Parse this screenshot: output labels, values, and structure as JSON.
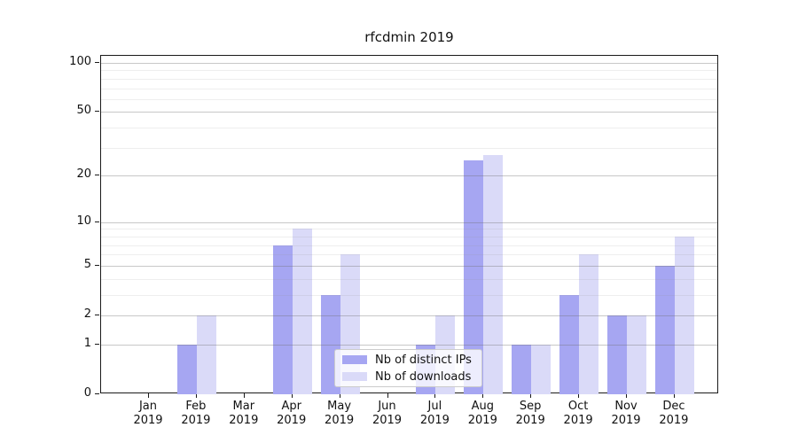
{
  "title": "rfcdmin 2019",
  "colors": {
    "distinct_ips": "#a6a6f2",
    "downloads": "#dadaf8",
    "grid_major": "#c6c6c6",
    "grid_minor": "#ebebeb",
    "spine": "#1a1a1a"
  },
  "chart_data": {
    "type": "bar",
    "title": "rfcdmin 2019",
    "categories": [
      "Jan 2019",
      "Feb 2019",
      "Mar 2019",
      "Apr 2019",
      "May 2019",
      "Jun 2019",
      "Jul 2019",
      "Aug 2019",
      "Sep 2019",
      "Oct 2019",
      "Nov 2019",
      "Dec 2019"
    ],
    "series": [
      {
        "name": "Nb of distinct IPs",
        "color": "#a6a6f2",
        "values": [
          0,
          1,
          0,
          7,
          3,
          0,
          1,
          25,
          1,
          3,
          2,
          5
        ]
      },
      {
        "name": "Nb of downloads",
        "color": "#dadaf8",
        "values": [
          0,
          2,
          0,
          9,
          6,
          0,
          2,
          27,
          1,
          6,
          2,
          8
        ]
      }
    ],
    "xlabel": "",
    "ylabel": "",
    "yscale": "log1p",
    "ylim": [
      0,
      110
    ],
    "y_ticks_major": [
      0,
      1,
      2,
      5,
      10,
      20,
      50,
      100
    ],
    "y_ticks_minor": [
      3,
      4,
      6,
      7,
      8,
      9,
      30,
      40,
      60,
      70,
      80,
      90
    ],
    "grid": "both",
    "legend_position": "lower center-right"
  }
}
